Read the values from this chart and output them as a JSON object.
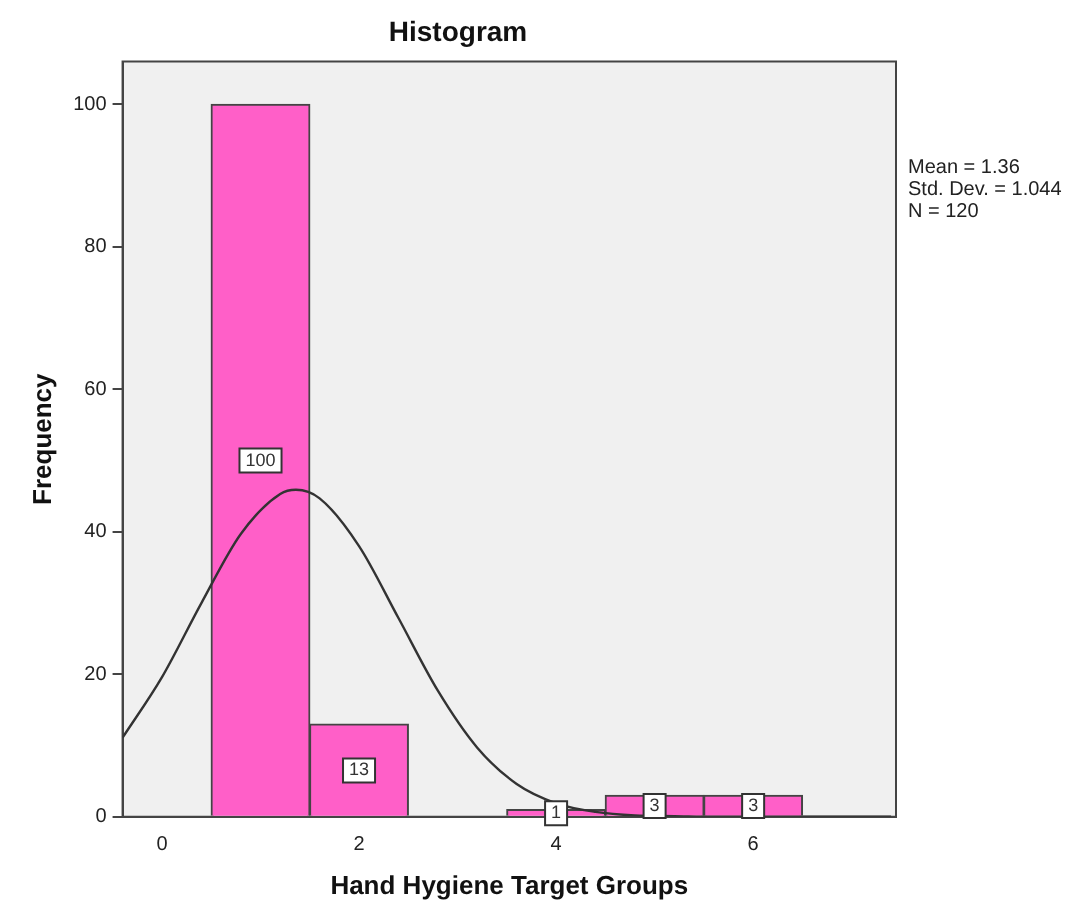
{
  "chart_data": {
    "type": "histogram",
    "title": "Histogram",
    "xlabel": "Hand Hygiene Target Groups",
    "ylabel": "Frequency",
    "bins": [
      0.5,
      1.5,
      2.5,
      3.5,
      4.5,
      5.5,
      6.5
    ],
    "values": [
      100,
      13,
      0,
      1,
      3,
      3
    ],
    "value_labels": [
      "100",
      "13",
      null,
      "1",
      "3",
      "3"
    ],
    "color": "#ff5fc8",
    "series": [
      {
        "type": "line",
        "color": "#333333",
        "x": [
          -0.4,
          0,
          0.4,
          0.8,
          1.2,
          1.36,
          1.6,
          2.0,
          2.4,
          2.8,
          3.2,
          3.6,
          4.0,
          4.4,
          4.8,
          5.2,
          5.6,
          6.0,
          6.5,
          7.0,
          7.4
        ],
        "values": [
          11.1,
          19.6,
          30.0,
          39.7,
          45.3,
          45.9,
          44.7,
          38.0,
          27.9,
          17.7,
          9.7,
          4.6,
          1.9,
          0.7,
          0.2,
          0.1,
          0,
          0,
          0,
          0,
          0
        ]
      }
    ],
    "xlim": [
      -0.4,
      7.45
    ],
    "xticks": [
      0,
      2,
      4,
      6
    ],
    "ylim": [
      0,
      106
    ],
    "yticks": [
      0,
      20,
      40,
      60,
      80,
      100
    ],
    "annotations": [
      "Mean = 1.36",
      "Std. Dev. = 1.044",
      "N = 120"
    ],
    "grid": false,
    "legend": false,
    "marker": "none"
  }
}
